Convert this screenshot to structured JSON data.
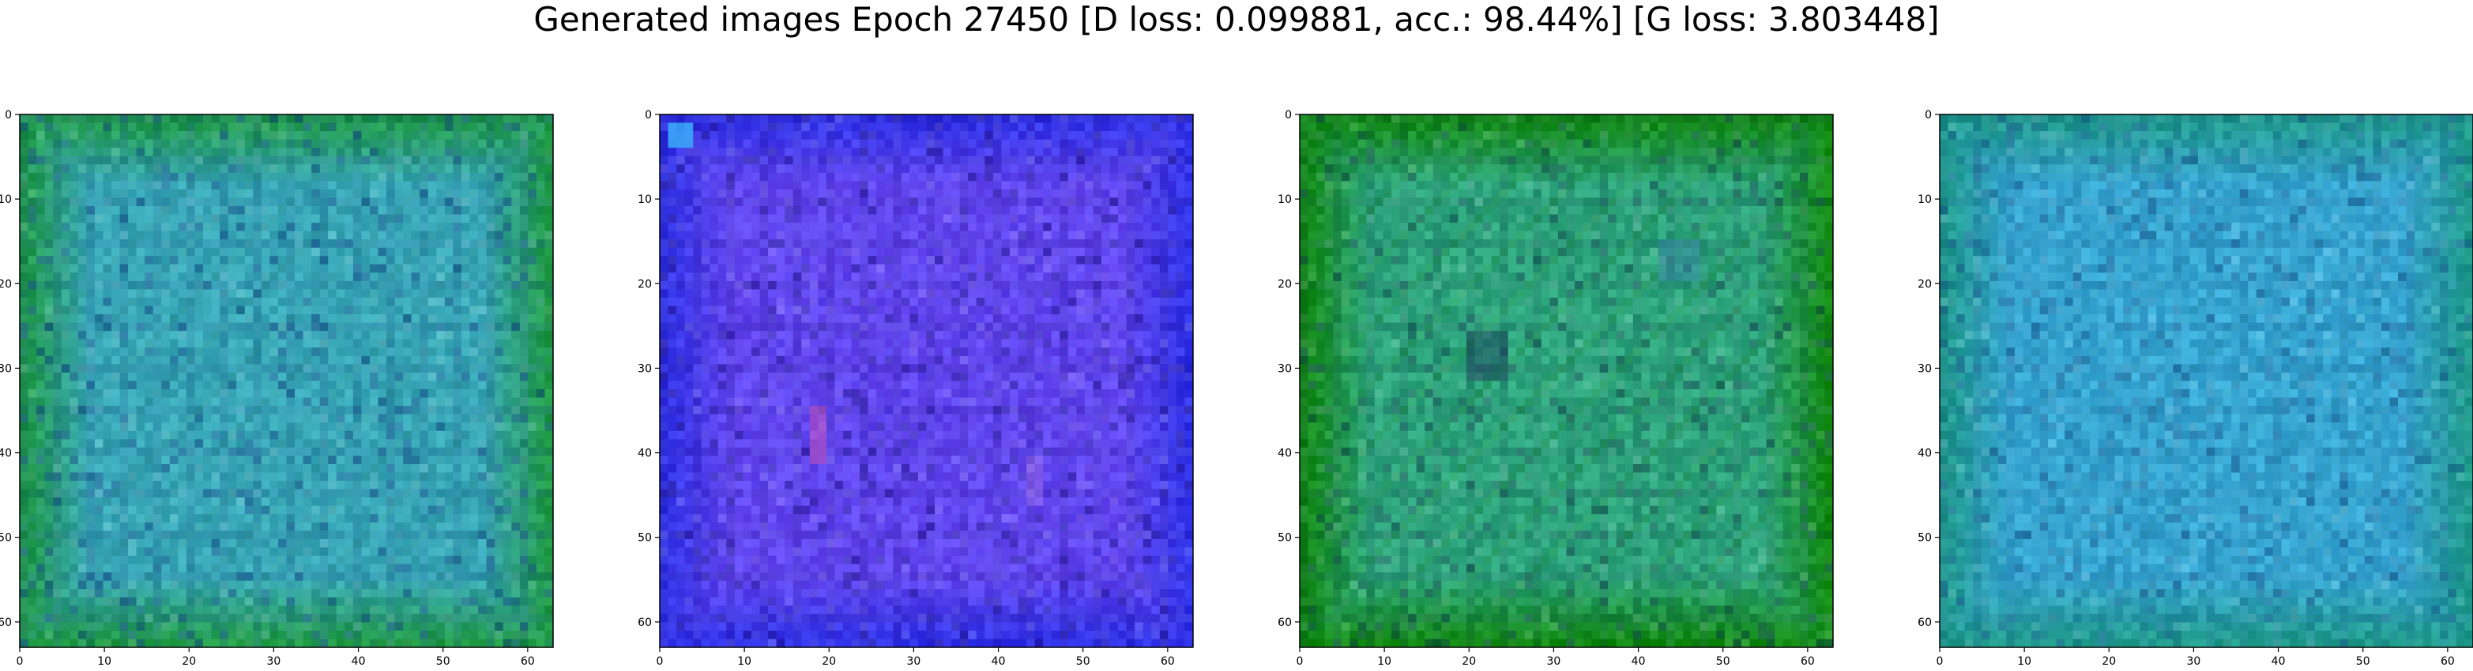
{
  "figure": {
    "title": "Generated images Epoch 27450 [D loss: 0.099881, acc.: 98.44%] [G loss: 3.803448]"
  },
  "axes": {
    "x_ticks": [
      "0",
      "10",
      "20",
      "30",
      "40",
      "50",
      "60"
    ],
    "y_ticks": [
      "0",
      "10",
      "20",
      "30",
      "40",
      "50",
      "60"
    ],
    "x_range": [
      0,
      63
    ],
    "y_range": [
      0,
      63
    ]
  },
  "panels": [
    {
      "name": "image-1",
      "base_color": "#2f8f8a",
      "border_color": "#1f9a44",
      "center_color": "#39a8b8",
      "accent_color": "#1b4f8c"
    },
    {
      "name": "image-2",
      "base_color": "#4b3cf2",
      "border_color": "#2f32e8",
      "center_color": "#6448f0",
      "accent_color": "#2b1f93"
    },
    {
      "name": "image-3",
      "base_color": "#238f35",
      "border_color": "#118a11",
      "center_color": "#2ea67e",
      "accent_color": "#1c4d58"
    },
    {
      "name": "image-4",
      "base_color": "#2a8fa5",
      "border_color": "#1f9a8a",
      "center_color": "#38a8d5",
      "accent_color": "#225f92"
    }
  ]
}
